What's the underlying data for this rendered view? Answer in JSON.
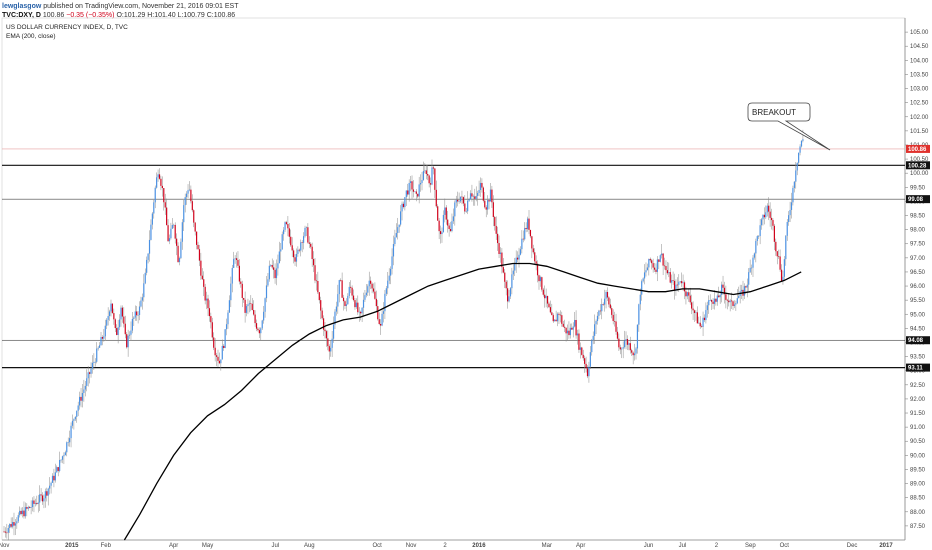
{
  "header": {
    "author": "lewglasgow",
    "published": "published on TradingView.com, November 21, 2016 09:01 EST",
    "symbol": "TVC:DXY, D",
    "last": "100.86",
    "change": "−0.35 (−0.35%)",
    "ohlc": "O:101.29 H:101.40 L:100.79 C:100.86"
  },
  "colors": {
    "up": "#4a90e2",
    "down": "#d0021b",
    "wick": "#888888",
    "ema": "#000000",
    "last_line": "#e8a0a0",
    "badge_bg": "#111111",
    "last_badge_bg": "#e0312d"
  },
  "chart_data": {
    "type": "candlestick",
    "title": "US DOLLAR CURRENCY INDEX, D, TVC",
    "indicator": "EMA (200, close)",
    "ylim": [
      87.0,
      105.5
    ],
    "y_ticks": [
      "105.00",
      "104.50",
      "104.00",
      "103.50",
      "103.00",
      "102.50",
      "102.00",
      "101.50",
      "101.00",
      "100.50",
      "100.00",
      "99.50",
      "99.00",
      "98.50",
      "98.00",
      "97.50",
      "97.00",
      "96.50",
      "96.00",
      "95.50",
      "95.00",
      "94.50",
      "94.00",
      "93.50",
      "93.00",
      "92.50",
      "92.00",
      "91.50",
      "91.00",
      "90.50",
      "90.00",
      "89.50",
      "89.00",
      "88.50",
      "88.00",
      "87.50"
    ],
    "x_labels": [
      {
        "label": "Nov",
        "t": 0
      },
      {
        "label": "2015",
        "t": 2
      },
      {
        "label": "Feb",
        "t": 3
      },
      {
        "label": "Apr",
        "t": 5
      },
      {
        "label": "May",
        "t": 6
      },
      {
        "label": "Jul",
        "t": 8
      },
      {
        "label": "Aug",
        "t": 9
      },
      {
        "label": "Oct",
        "t": 11
      },
      {
        "label": "Nov",
        "t": 12
      },
      {
        "label": "2",
        "t": 13
      },
      {
        "label": "2016",
        "t": 14
      },
      {
        "label": "Mar",
        "t": 16
      },
      {
        "label": "Apr",
        "t": 17
      },
      {
        "label": "Jun",
        "t": 19
      },
      {
        "label": "Jul",
        "t": 20
      },
      {
        "label": "2",
        "t": 21
      },
      {
        "label": "Sep",
        "t": 22
      },
      {
        "label": "Oct",
        "t": 23
      },
      {
        "label": "Dec",
        "t": 25
      },
      {
        "label": "2017",
        "t": 26
      }
    ],
    "x_range": [
      0,
      26.5
    ],
    "horizontal_levels": [
      {
        "value": 100.28,
        "label": "100.28",
        "weight": "heavy"
      },
      {
        "value": 99.08,
        "label": "99.08",
        "weight": "light"
      },
      {
        "value": 94.08,
        "label": "94.08",
        "weight": "light"
      },
      {
        "value": 93.11,
        "label": "93.11",
        "weight": "heavy"
      }
    ],
    "last_price": {
      "value": 100.86,
      "label": "100.86"
    },
    "annotation": {
      "text": "BREAKOUT"
    },
    "price_path": [
      [
        0.0,
        87.3
      ],
      [
        0.4,
        87.8
      ],
      [
        0.8,
        88.2
      ],
      [
        1.2,
        88.6
      ],
      [
        1.5,
        89.3
      ],
      [
        1.8,
        90.2
      ],
      [
        2.1,
        91.5
      ],
      [
        2.4,
        92.5
      ],
      [
        2.7,
        93.5
      ],
      [
        3.0,
        94.5
      ],
      [
        3.15,
        95.5
      ],
      [
        3.3,
        94.2
      ],
      [
        3.45,
        95.3
      ],
      [
        3.6,
        93.9
      ],
      [
        3.8,
        94.8
      ],
      [
        4.0,
        95.2
      ],
      [
        4.15,
        96.2
      ],
      [
        4.3,
        97.8
      ],
      [
        4.45,
        99.4
      ],
      [
        4.55,
        100.2
      ],
      [
        4.7,
        99.2
      ],
      [
        4.85,
        97.5
      ],
      [
        5.0,
        98.3
      ],
      [
        5.15,
        96.8
      ],
      [
        5.3,
        98.9
      ],
      [
        5.45,
        99.6
      ],
      [
        5.6,
        98.1
      ],
      [
        5.75,
        97.0
      ],
      [
        5.9,
        95.7
      ],
      [
        6.05,
        95.1
      ],
      [
        6.2,
        93.8
      ],
      [
        6.35,
        93.3
      ],
      [
        6.5,
        94.1
      ],
      [
        6.65,
        95.7
      ],
      [
        6.8,
        97.2
      ],
      [
        6.95,
        96.2
      ],
      [
        7.1,
        95.1
      ],
      [
        7.25,
        95.4
      ],
      [
        7.4,
        94.7
      ],
      [
        7.55,
        94.4
      ],
      [
        7.7,
        95.6
      ],
      [
        7.85,
        96.8
      ],
      [
        8.0,
        96.3
      ],
      [
        8.15,
        97.4
      ],
      [
        8.3,
        98.2
      ],
      [
        8.45,
        97.6
      ],
      [
        8.6,
        96.9
      ],
      [
        8.75,
        97.6
      ],
      [
        8.9,
        98.0
      ],
      [
        9.05,
        97.2
      ],
      [
        9.2,
        96.1
      ],
      [
        9.35,
        95.0
      ],
      [
        9.5,
        94.1
      ],
      [
        9.6,
        93.6
      ],
      [
        9.75,
        95.0
      ],
      [
        9.9,
        96.2
      ],
      [
        10.05,
        95.2
      ],
      [
        10.2,
        96.0
      ],
      [
        10.35,
        95.4
      ],
      [
        10.5,
        94.8
      ],
      [
        10.65,
        95.8
      ],
      [
        10.8,
        96.3
      ],
      [
        10.95,
        95.4
      ],
      [
        11.1,
        94.5
      ],
      [
        11.25,
        95.8
      ],
      [
        11.4,
        96.8
      ],
      [
        11.55,
        97.8
      ],
      [
        11.7,
        98.6
      ],
      [
        11.85,
        99.3
      ],
      [
        12.0,
        99.6
      ],
      [
        12.15,
        99.1
      ],
      [
        12.3,
        99.8
      ],
      [
        12.45,
        100.1
      ],
      [
        12.55,
        99.6
      ],
      [
        12.65,
        100.3
      ],
      [
        12.75,
        98.8
      ],
      [
        12.85,
        97.6
      ],
      [
        13.0,
        98.7
      ],
      [
        13.15,
        97.8
      ],
      [
        13.3,
        98.9
      ],
      [
        13.45,
        99.2
      ],
      [
        13.6,
        98.7
      ],
      [
        13.75,
        99.4
      ],
      [
        13.9,
        99.0
      ],
      [
        14.05,
        99.6
      ],
      [
        14.2,
        98.8
      ],
      [
        14.35,
        99.3
      ],
      [
        14.5,
        97.8
      ],
      [
        14.65,
        97.0
      ],
      [
        14.75,
        96.1
      ],
      [
        14.85,
        95.6
      ],
      [
        15.0,
        96.4
      ],
      [
        15.15,
        97.1
      ],
      [
        15.3,
        97.8
      ],
      [
        15.45,
        98.3
      ],
      [
        15.6,
        97.2
      ],
      [
        15.75,
        96.4
      ],
      [
        15.9,
        95.8
      ],
      [
        16.05,
        95.2
      ],
      [
        16.2,
        94.6
      ],
      [
        16.35,
        95.1
      ],
      [
        16.5,
        94.5
      ],
      [
        16.65,
        94.3
      ],
      [
        16.8,
        94.8
      ],
      [
        16.95,
        93.9
      ],
      [
        17.1,
        93.4
      ],
      [
        17.2,
        92.9
      ],
      [
        17.3,
        93.8
      ],
      [
        17.45,
        94.8
      ],
      [
        17.6,
        95.3
      ],
      [
        17.75,
        95.7
      ],
      [
        17.9,
        95.1
      ],
      [
        18.05,
        94.3
      ],
      [
        18.15,
        93.7
      ],
      [
        18.3,
        94.1
      ],
      [
        18.45,
        93.9
      ],
      [
        18.6,
        93.5
      ],
      [
        18.75,
        95.8
      ],
      [
        18.9,
        96.5
      ],
      [
        19.05,
        96.9
      ],
      [
        19.2,
        96.6
      ],
      [
        19.35,
        97.2
      ],
      [
        19.5,
        96.6
      ],
      [
        19.65,
        96.2
      ],
      [
        19.8,
        95.9
      ],
      [
        19.95,
        96.3
      ],
      [
        20.1,
        95.8
      ],
      [
        20.25,
        95.4
      ],
      [
        20.4,
        94.9
      ],
      [
        20.55,
        94.5
      ],
      [
        20.7,
        95.2
      ],
      [
        20.85,
        95.6
      ],
      [
        21.0,
        95.4
      ],
      [
        21.15,
        95.9
      ],
      [
        21.3,
        95.6
      ],
      [
        21.45,
        95.3
      ],
      [
        21.6,
        95.6
      ],
      [
        21.75,
        95.7
      ],
      [
        21.9,
        96.1
      ],
      [
        22.05,
        96.9
      ],
      [
        22.2,
        97.7
      ],
      [
        22.35,
        98.3
      ],
      [
        22.5,
        98.8
      ],
      [
        22.65,
        98.2
      ],
      [
        22.75,
        97.4
      ],
      [
        22.85,
        96.9
      ],
      [
        22.95,
        96.1
      ],
      [
        23.05,
        97.8
      ],
      [
        23.15,
        98.6
      ],
      [
        23.25,
        99.4
      ],
      [
        23.35,
        100.3
      ],
      [
        23.45,
        100.9
      ],
      [
        23.55,
        101.2
      ]
    ],
    "ema_path": [
      [
        3.55,
        87.0
      ],
      [
        4.0,
        87.9
      ],
      [
        4.5,
        89.0
      ],
      [
        5.0,
        90.0
      ],
      [
        5.5,
        90.8
      ],
      [
        6.0,
        91.4
      ],
      [
        6.5,
        91.8
      ],
      [
        7.0,
        92.3
      ],
      [
        7.5,
        92.9
      ],
      [
        8.0,
        93.4
      ],
      [
        8.5,
        93.9
      ],
      [
        9.0,
        94.3
      ],
      [
        9.5,
        94.6
      ],
      [
        10.0,
        94.8
      ],
      [
        10.5,
        94.9
      ],
      [
        11.0,
        95.1
      ],
      [
        11.5,
        95.4
      ],
      [
        12.0,
        95.7
      ],
      [
        12.5,
        96.0
      ],
      [
        13.0,
        96.2
      ],
      [
        13.5,
        96.4
      ],
      [
        14.0,
        96.6
      ],
      [
        14.5,
        96.7
      ],
      [
        15.0,
        96.8
      ],
      [
        15.5,
        96.8
      ],
      [
        16.0,
        96.7
      ],
      [
        16.5,
        96.5
      ],
      [
        17.0,
        96.3
      ],
      [
        17.5,
        96.1
      ],
      [
        18.0,
        96.0
      ],
      [
        18.5,
        95.9
      ],
      [
        19.0,
        95.8
      ],
      [
        19.5,
        95.8
      ],
      [
        20.0,
        95.9
      ],
      [
        20.5,
        95.9
      ],
      [
        21.0,
        95.8
      ],
      [
        21.5,
        95.7
      ],
      [
        22.0,
        95.8
      ],
      [
        22.5,
        96.0
      ],
      [
        23.0,
        96.2
      ],
      [
        23.5,
        96.5
      ]
    ]
  }
}
